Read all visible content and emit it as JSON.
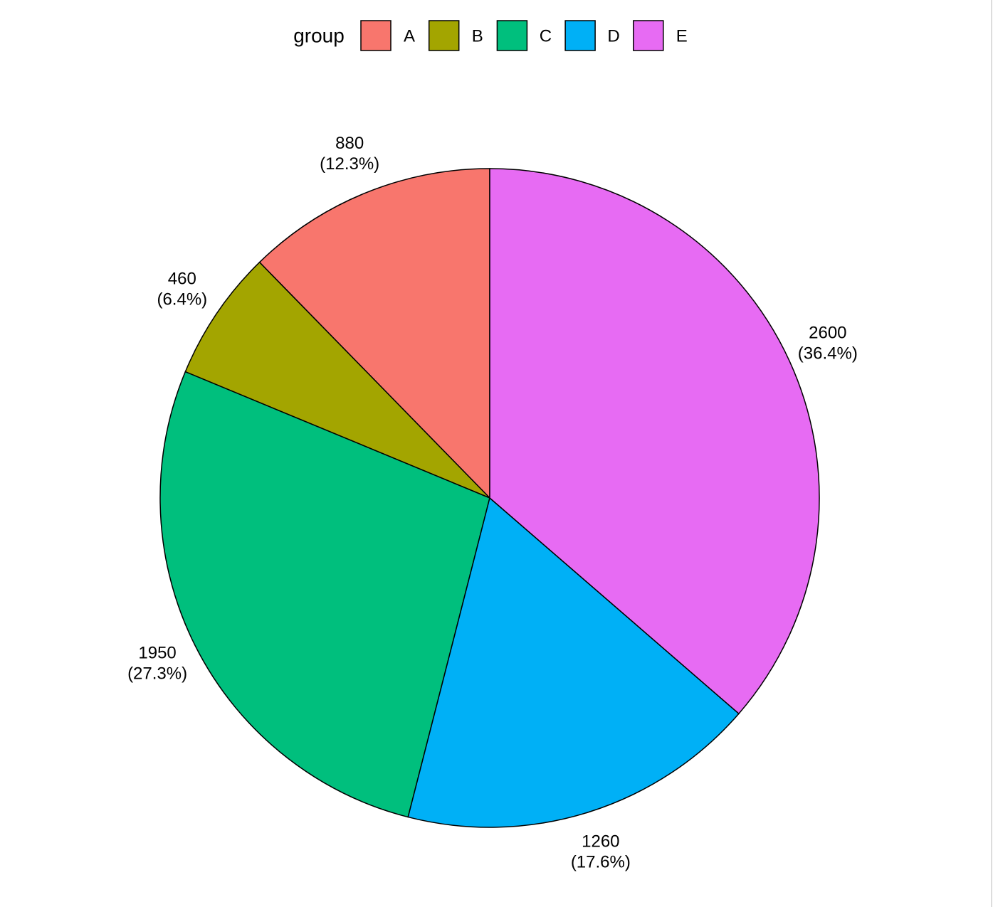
{
  "chart_data": {
    "type": "pie",
    "legend_title": "group",
    "categories": [
      "A",
      "B",
      "C",
      "D",
      "E"
    ],
    "values": [
      880,
      460,
      1950,
      1260,
      2600
    ],
    "percent_labels": [
      "(12.3%)",
      "(6.4%)",
      "(27.3%)",
      "(17.6%)",
      "(36.4%)"
    ],
    "colors": [
      "#f8766d",
      "#a3a500",
      "#00bf7d",
      "#00b0f6",
      "#e76bf3"
    ],
    "legend_position": "top"
  }
}
